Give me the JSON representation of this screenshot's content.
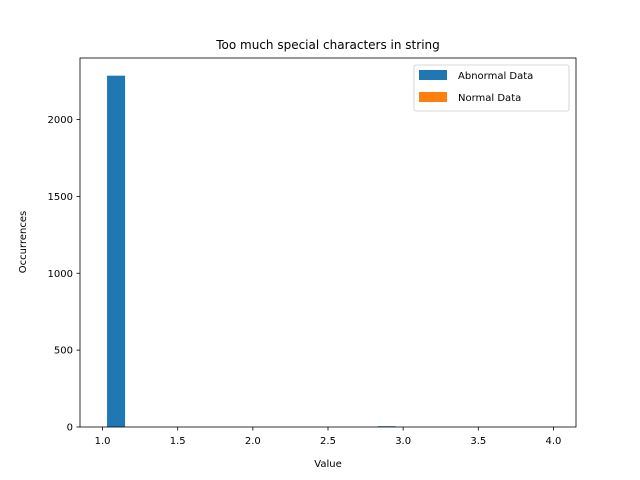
{
  "chart_data": {
    "type": "bar",
    "title": "Too much special characters in string",
    "xlabel": "Value",
    "ylabel": "Occurrences",
    "xlim": [
      0.85,
      4.15
    ],
    "ylim": [
      0,
      2400
    ],
    "xticks": [
      "1.0",
      "1.5",
      "2.0",
      "2.5",
      "3.0",
      "3.5",
      "4.0"
    ],
    "yticks": [
      "0",
      "500",
      "1000",
      "1500",
      "2000"
    ],
    "grid": false,
    "legend_position": "top-right",
    "series": [
      {
        "name": "Abnormal Data",
        "color": "#1f77b4",
        "bins": [
          {
            "x0": 1.03,
            "x1": 1.15,
            "value": 2285
          },
          {
            "x0": 2.83,
            "x1": 2.95,
            "value": 5
          }
        ]
      },
      {
        "name": "Normal Data",
        "color": "#ff7f0e",
        "bins": []
      }
    ]
  }
}
